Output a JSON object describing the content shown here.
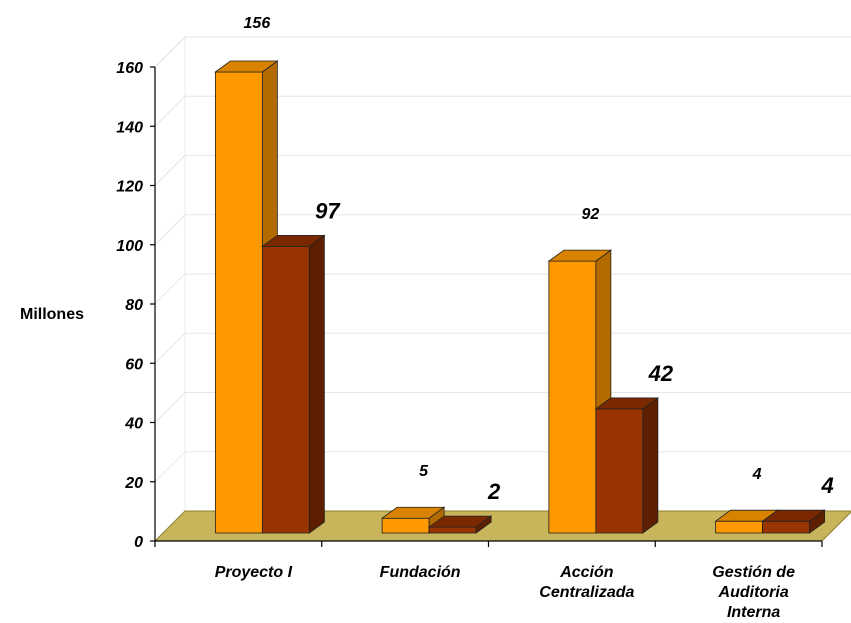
{
  "chart_data": {
    "type": "bar",
    "categories": [
      [
        "Proyecto I"
      ],
      [
        "Fundación"
      ],
      [
        "Acción",
        "Centralizada"
      ],
      [
        "Gestión de",
        "Auditoria",
        "Interna"
      ]
    ],
    "series": [
      {
        "values": [
          156,
          5,
          92,
          4
        ],
        "color": "#FF9900",
        "side_color": "#B36B00",
        "top_color": "#D98200"
      },
      {
        "values": [
          97,
          2,
          42,
          4
        ],
        "color": "#993300",
        "side_color": "#5E1F00",
        "top_color": "#7A2800"
      }
    ],
    "data_labels": [
      [
        "156",
        "5",
        "92",
        "4"
      ],
      [
        "97",
        "2",
        "42",
        "4"
      ]
    ],
    "ylabel": "Millones",
    "ylim": [
      0,
      160
    ],
    "yticks": [
      "0",
      "20",
      "40",
      "60",
      "80",
      "100",
      "120",
      "140",
      "160"
    ],
    "grid": true,
    "floor_color": "#C8B45A"
  }
}
